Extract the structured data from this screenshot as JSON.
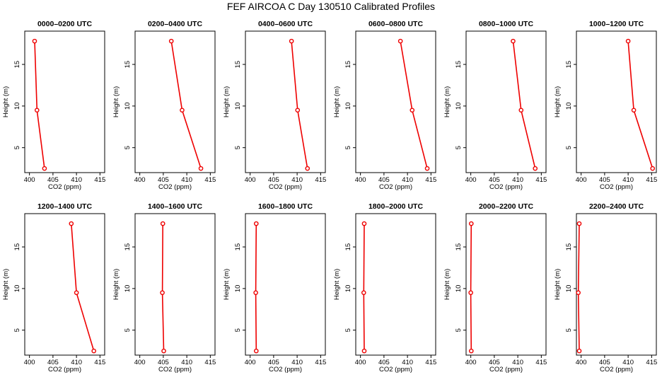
{
  "figure_title": "FEF AIRCOA C  Day 130510  Calibrated Profiles",
  "colors": {
    "series": "#ee0000",
    "axis": "#000000",
    "background": "#ffffff"
  },
  "chart_data": [
    {
      "type": "line",
      "title": "0000–0200 UTC",
      "xlabel": "CO2 (ppm)",
      "ylabel": "Height (m)",
      "xlim": [
        399,
        416
      ],
      "ylim": [
        2,
        19
      ],
      "xticks": [
        400,
        405,
        410,
        415
      ],
      "yticks": [
        5,
        10,
        15
      ],
      "points": [
        {
          "x": 403.2,
          "y": 2.5
        },
        {
          "x": 401.6,
          "y": 9.5
        },
        {
          "x": 401.1,
          "y": 17.8
        }
      ]
    },
    {
      "type": "line",
      "title": "0200–0400 UTC",
      "xlabel": "CO2 (ppm)",
      "ylabel": "Height (m)",
      "xlim": [
        399,
        416
      ],
      "ylim": [
        2,
        19
      ],
      "xticks": [
        400,
        405,
        410,
        415
      ],
      "yticks": [
        5,
        10,
        15
      ],
      "points": [
        {
          "x": 413.0,
          "y": 2.5
        },
        {
          "x": 409.0,
          "y": 9.5
        },
        {
          "x": 406.7,
          "y": 17.8
        }
      ]
    },
    {
      "type": "line",
      "title": "0400–0600 UTC",
      "xlabel": "CO2 (ppm)",
      "ylabel": "Height (m)",
      "xlim": [
        399,
        416
      ],
      "ylim": [
        2,
        19
      ],
      "xticks": [
        400,
        405,
        410,
        415
      ],
      "yticks": [
        5,
        10,
        15
      ],
      "points": [
        {
          "x": 412.2,
          "y": 2.5
        },
        {
          "x": 410.1,
          "y": 9.5
        },
        {
          "x": 408.8,
          "y": 17.8
        }
      ]
    },
    {
      "type": "line",
      "title": "0600–0800 UTC",
      "xlabel": "CO2 (ppm)",
      "ylabel": "Height (m)",
      "xlim": [
        399,
        416
      ],
      "ylim": [
        2,
        19
      ],
      "xticks": [
        400,
        405,
        410,
        415
      ],
      "yticks": [
        5,
        10,
        15
      ],
      "points": [
        {
          "x": 414.2,
          "y": 2.5
        },
        {
          "x": 411.0,
          "y": 9.5
        },
        {
          "x": 408.5,
          "y": 17.8
        }
      ]
    },
    {
      "type": "line",
      "title": "0800–1000 UTC",
      "xlabel": "CO2 (ppm)",
      "ylabel": "Height (m)",
      "xlim": [
        399,
        416
      ],
      "ylim": [
        2,
        19
      ],
      "xticks": [
        400,
        405,
        410,
        415
      ],
      "yticks": [
        5,
        10,
        15
      ],
      "points": [
        {
          "x": 413.7,
          "y": 2.5
        },
        {
          "x": 410.7,
          "y": 9.5
        },
        {
          "x": 409.0,
          "y": 17.8
        }
      ]
    },
    {
      "type": "line",
      "title": "1000–1200 UTC",
      "xlabel": "CO2 (ppm)",
      "ylabel": "Height (m)",
      "xlim": [
        399,
        416
      ],
      "ylim": [
        2,
        19
      ],
      "xticks": [
        400,
        405,
        410,
        415
      ],
      "yticks": [
        5,
        10,
        15
      ],
      "points": [
        {
          "x": 415.2,
          "y": 2.5
        },
        {
          "x": 411.2,
          "y": 9.5
        },
        {
          "x": 410.0,
          "y": 17.8
        }
      ]
    },
    {
      "type": "line",
      "title": "1200–1400 UTC",
      "xlabel": "CO2 (ppm)",
      "ylabel": "Height (m)",
      "xlim": [
        399,
        416
      ],
      "ylim": [
        2,
        19
      ],
      "xticks": [
        400,
        405,
        410,
        415
      ],
      "yticks": [
        5,
        10,
        15
      ],
      "points": [
        {
          "x": 413.7,
          "y": 2.5
        },
        {
          "x": 410.0,
          "y": 9.5
        },
        {
          "x": 408.9,
          "y": 17.8
        }
      ]
    },
    {
      "type": "line",
      "title": "1400–1600 UTC",
      "xlabel": "CO2 (ppm)",
      "ylabel": "Height (m)",
      "xlim": [
        399,
        416
      ],
      "ylim": [
        2,
        19
      ],
      "xticks": [
        400,
        405,
        410,
        415
      ],
      "yticks": [
        5,
        10,
        15
      ],
      "points": [
        {
          "x": 405.1,
          "y": 2.5
        },
        {
          "x": 404.8,
          "y": 9.5
        },
        {
          "x": 404.9,
          "y": 17.8
        }
      ]
    },
    {
      "type": "line",
      "title": "1600–1800 UTC",
      "xlabel": "CO2 (ppm)",
      "ylabel": "Height (m)",
      "xlim": [
        399,
        416
      ],
      "ylim": [
        2,
        19
      ],
      "xticks": [
        400,
        405,
        410,
        415
      ],
      "yticks": [
        5,
        10,
        15
      ],
      "points": [
        {
          "x": 401.3,
          "y": 2.5
        },
        {
          "x": 401.2,
          "y": 9.5
        },
        {
          "x": 401.3,
          "y": 17.8
        }
      ]
    },
    {
      "type": "line",
      "title": "1800–2000 UTC",
      "xlabel": "CO2 (ppm)",
      "ylabel": "Height (m)",
      "xlim": [
        399,
        416
      ],
      "ylim": [
        2,
        19
      ],
      "xticks": [
        400,
        405,
        410,
        415
      ],
      "yticks": [
        5,
        10,
        15
      ],
      "points": [
        {
          "x": 400.8,
          "y": 2.5
        },
        {
          "x": 400.7,
          "y": 9.5
        },
        {
          "x": 400.8,
          "y": 17.8
        }
      ]
    },
    {
      "type": "line",
      "title": "2000–2200 UTC",
      "xlabel": "CO2 (ppm)",
      "ylabel": "Height (m)",
      "xlim": [
        399,
        416
      ],
      "ylim": [
        2,
        19
      ],
      "xticks": [
        400,
        405,
        410,
        415
      ],
      "yticks": [
        5,
        10,
        15
      ],
      "points": [
        {
          "x": 400.1,
          "y": 2.5
        },
        {
          "x": 400.0,
          "y": 9.5
        },
        {
          "x": 400.1,
          "y": 17.8
        }
      ]
    },
    {
      "type": "line",
      "title": "2200–2400 UTC",
      "xlabel": "CO2 (ppm)",
      "ylabel": "Height (m)",
      "xlim": [
        399,
        416
      ],
      "ylim": [
        2,
        19
      ],
      "xticks": [
        400,
        405,
        410,
        415
      ],
      "yticks": [
        5,
        10,
        15
      ],
      "points": [
        {
          "x": 399.6,
          "y": 2.5
        },
        {
          "x": 399.4,
          "y": 9.5
        },
        {
          "x": 399.6,
          "y": 17.8
        }
      ]
    }
  ]
}
